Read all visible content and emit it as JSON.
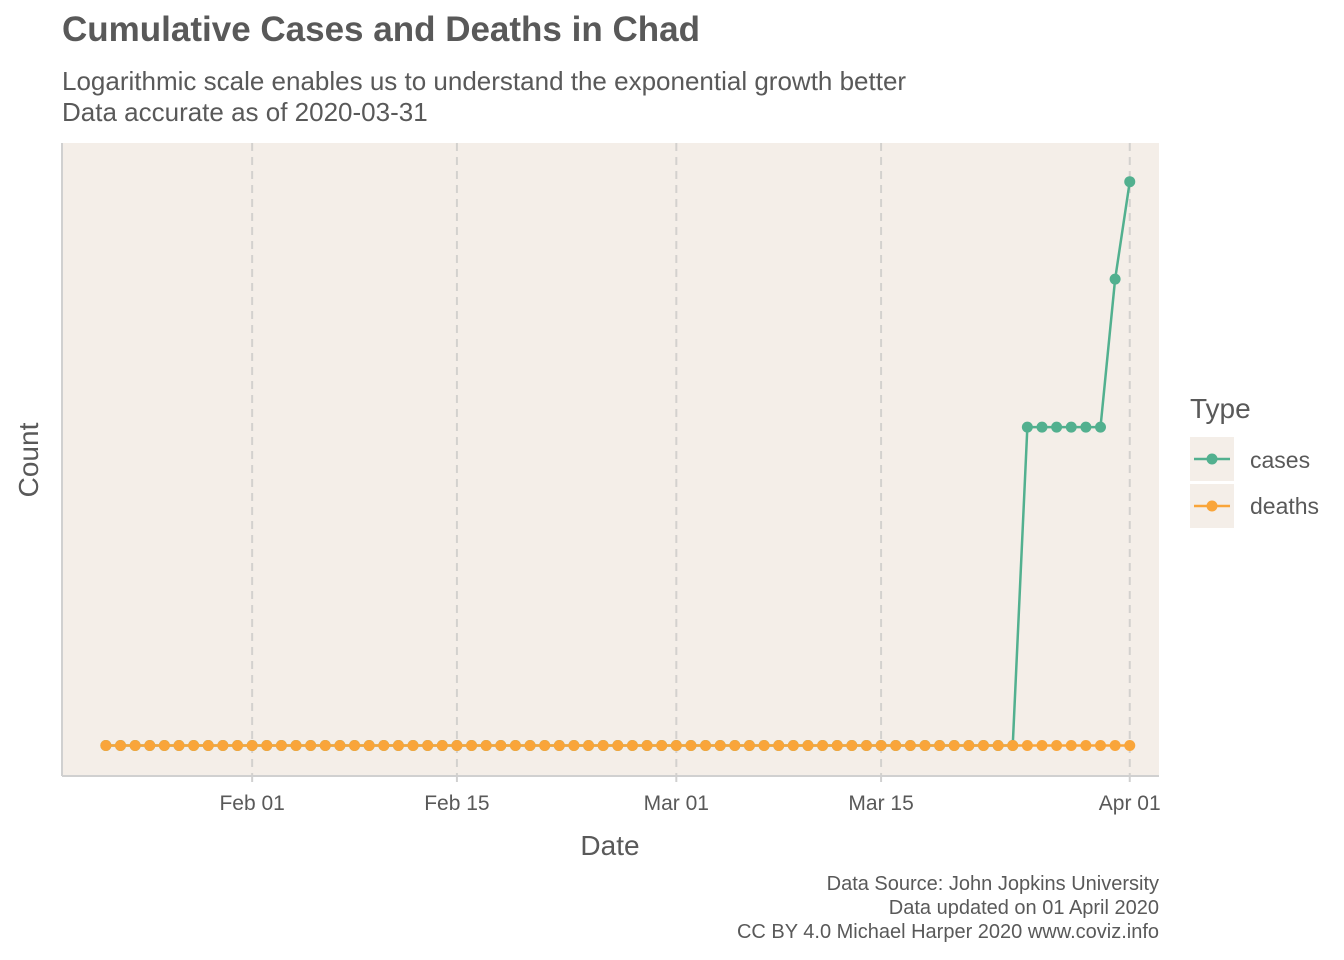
{
  "chart_data": {
    "type": "line",
    "title": "Cumulative Cases and Deaths in Chad",
    "subtitle_lines": [
      "Logarithmic scale enables us to understand the exponential growth better",
      "Data accurate as of 2020-03-31"
    ],
    "xlabel": "Date",
    "ylabel": "Count",
    "x_ticks": [
      {
        "date": "2020-02-01",
        "label": "Feb 01"
      },
      {
        "date": "2020-02-15",
        "label": "Feb 15"
      },
      {
        "date": "2020-03-01",
        "label": "Mar 01"
      },
      {
        "date": "2020-03-15",
        "label": "Mar 15"
      },
      {
        "date": "2020-04-01",
        "label": "Apr 01"
      }
    ],
    "xlim": [
      "2020-01-19",
      "2020-04-03"
    ],
    "y_scale": "log",
    "ylim": [
      0.9,
      8
    ],
    "y_zero_value": 1,
    "grid": "vertical dashed at x ticks",
    "background_color": "#f4eee8",
    "legend": {
      "title": "Type",
      "position": "right",
      "items": [
        {
          "label": "cases",
          "color": "#52b08f"
        },
        {
          "label": "deaths",
          "color": "#f9a53a"
        }
      ]
    },
    "series": [
      {
        "name": "cases",
        "color": "#52b08f",
        "start_date": "2020-01-22",
        "values": [
          0,
          0,
          0,
          0,
          0,
          0,
          0,
          0,
          0,
          0,
          0,
          0,
          0,
          0,
          0,
          0,
          0,
          0,
          0,
          0,
          0,
          0,
          0,
          0,
          0,
          0,
          0,
          0,
          0,
          0,
          0,
          0,
          0,
          0,
          0,
          0,
          0,
          0,
          0,
          0,
          0,
          0,
          0,
          0,
          0,
          0,
          0,
          0,
          0,
          0,
          0,
          0,
          0,
          0,
          0,
          0,
          0,
          0,
          1,
          1,
          1,
          1,
          1,
          3,
          3,
          3,
          3,
          3,
          3,
          5,
          7
        ]
      },
      {
        "name": "deaths",
        "color": "#f9a53a",
        "start_date": "2020-01-22",
        "values": [
          0,
          0,
          0,
          0,
          0,
          0,
          0,
          0,
          0,
          0,
          0,
          0,
          0,
          0,
          0,
          0,
          0,
          0,
          0,
          0,
          0,
          0,
          0,
          0,
          0,
          0,
          0,
          0,
          0,
          0,
          0,
          0,
          0,
          0,
          0,
          0,
          0,
          0,
          0,
          0,
          0,
          0,
          0,
          0,
          0,
          0,
          0,
          0,
          0,
          0,
          0,
          0,
          0,
          0,
          0,
          0,
          0,
          0,
          0,
          0,
          0,
          0,
          0,
          0,
          0,
          0,
          0,
          0,
          0,
          0,
          0
        ]
      }
    ]
  },
  "caption": [
    "Data Source: John Jopkins University",
    "Data updated on 01 April 2020",
    "CC BY 4.0 Michael Harper 2020 www.coviz.info"
  ]
}
